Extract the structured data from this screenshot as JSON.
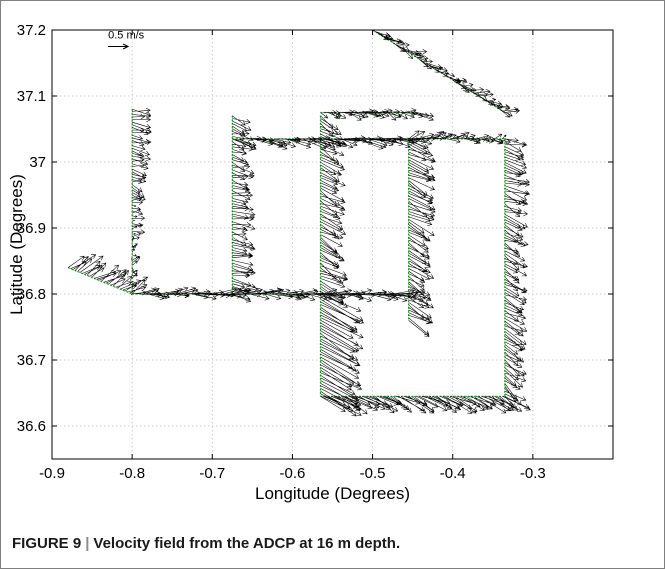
{
  "caption": {
    "label": "FIGURE 9",
    "separator": "|",
    "text": "Velocity field from the ADCP at 16 m depth."
  },
  "chart_data": {
    "type": "quiver",
    "title": "",
    "xlabel": "Longitude (Degrees)",
    "ylabel": "Latitude (Degrees)",
    "xlim": [
      -0.9,
      -0.2
    ],
    "ylim": [
      36.55,
      37.2
    ],
    "xticks": [
      -0.9,
      -0.8,
      -0.7,
      -0.6,
      -0.5,
      -0.4,
      -0.3
    ],
    "xtick_labels": [
      "-0.9",
      "-0.8",
      "-0.7",
      "-0.6",
      "-0.5",
      "-0.4",
      "-0.3"
    ],
    "yticks": [
      36.6,
      36.7,
      36.8,
      36.9,
      37.0,
      37.1,
      37.2
    ],
    "ytick_labels": [
      "36.6",
      "36.7",
      "36.8",
      "36.9",
      "37",
      "37.1",
      "37.2"
    ],
    "grid": true,
    "scale_arrow": {
      "label": "0.5 m/s",
      "lon": -0.83,
      "lat": 37.175,
      "u": 0.5,
      "v": 0.0
    },
    "colors": {
      "track": "#1fa51f",
      "arrows": "#000000",
      "grid": "#bfbfbf"
    },
    "track_segments": [
      {
        "lon": [
          -0.8,
          -0.8
        ],
        "lat": [
          37.08,
          36.8
        ],
        "u": [
          0.42,
          0.05
        ],
        "v": [
          -0.1,
          0.03
        ]
      },
      {
        "lon": [
          -0.8,
          -0.455
        ],
        "lat": [
          36.8,
          36.8
        ],
        "u": [
          0.45,
          0.5
        ],
        "v": [
          0.03,
          -0.05
        ]
      },
      {
        "lon": [
          -0.675,
          -0.675
        ],
        "lat": [
          37.07,
          36.8
        ],
        "u": [
          0.42,
          0.45
        ],
        "v": [
          -0.12,
          -0.05
        ]
      },
      {
        "lon": [
          -0.675,
          -0.455
        ],
        "lat": [
          37.035,
          37.035
        ],
        "u": [
          0.5,
          0.55
        ],
        "v": [
          -0.12,
          -0.1
        ]
      },
      {
        "lon": [
          -0.455,
          -0.455
        ],
        "lat": [
          37.035,
          36.76
        ],
        "u": [
          0.55,
          0.5
        ],
        "v": [
          -0.25,
          -0.3
        ]
      },
      {
        "lon": [
          -0.565,
          -0.565
        ],
        "lat": [
          37.07,
          36.8
        ],
        "u": [
          0.45,
          0.55
        ],
        "v": [
          -0.2,
          -0.3
        ]
      },
      {
        "lon": [
          -0.565,
          -0.565
        ],
        "lat": [
          36.8,
          36.645
        ],
        "u": [
          0.95,
          0.9
        ],
        "v": [
          -0.55,
          -0.5
        ]
      },
      {
        "lon": [
          -0.565,
          -0.335
        ],
        "lat": [
          36.645,
          36.645
        ],
        "u": [
          0.6,
          0.55
        ],
        "v": [
          -0.3,
          -0.3
        ]
      },
      {
        "lon": [
          -0.335,
          -0.335
        ],
        "lat": [
          36.645,
          37.035
        ],
        "u": [
          0.4,
          0.5
        ],
        "v": [
          -0.3,
          -0.15
        ]
      },
      {
        "lon": [
          -0.335,
          -0.455
        ],
        "lat": [
          37.035,
          37.035
        ],
        "u": [
          0.2,
          0.3
        ],
        "v": [
          0.0,
          0.1
        ]
      },
      {
        "lon": [
          -0.565,
          -0.445
        ],
        "lat": [
          37.075,
          37.075
        ],
        "u": [
          0.3,
          0.35
        ],
        "v": [
          -0.08,
          -0.05
        ]
      },
      {
        "lon": [
          -0.5,
          -0.335
        ],
        "lat": [
          37.2,
          37.075
        ],
        "u": [
          0.35,
          0.3
        ],
        "v": [
          -0.1,
          -0.08
        ]
      },
      {
        "lon": [
          -0.88,
          -0.8
        ],
        "lat": [
          36.84,
          36.8
        ],
        "u": [
          0.45,
          0.45
        ],
        "v": [
          0.3,
          0.25
        ]
      }
    ]
  }
}
